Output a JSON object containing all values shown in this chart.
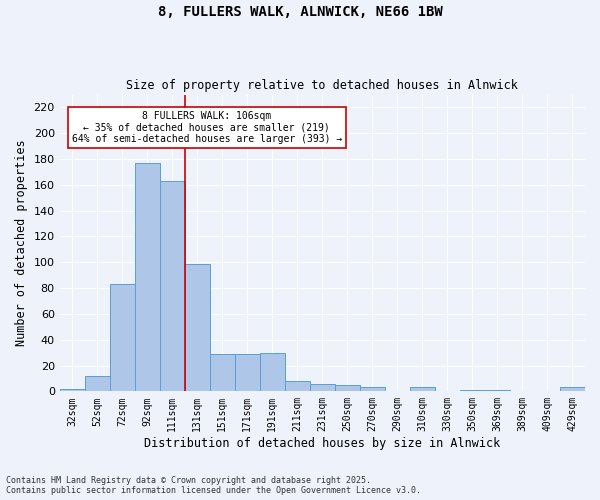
{
  "title": "8, FULLERS WALK, ALNWICK, NE66 1BW",
  "subtitle": "Size of property relative to detached houses in Alnwick",
  "xlabel": "Distribution of detached houses by size in Alnwick",
  "ylabel": "Number of detached properties",
  "categories": [
    "32sqm",
    "52sqm",
    "72sqm",
    "92sqm",
    "111sqm",
    "131sqm",
    "151sqm",
    "171sqm",
    "191sqm",
    "211sqm",
    "231sqm",
    "250sqm",
    "270sqm",
    "290sqm",
    "310sqm",
    "330sqm",
    "350sqm",
    "369sqm",
    "389sqm",
    "409sqm",
    "429sqm"
  ],
  "values": [
    2,
    12,
    83,
    177,
    163,
    99,
    29,
    29,
    30,
    8,
    6,
    5,
    3,
    0,
    3,
    0,
    1,
    1,
    0,
    0,
    3
  ],
  "bar_color": "#aec6e8",
  "bar_edge_color": "#5a9fd4",
  "bar_width": 1.0,
  "property_label": "8 FULLERS WALK: 106sqm",
  "annotation_line1": "← 35% of detached houses are smaller (219)",
  "annotation_line2": "64% of semi-detached houses are larger (393) →",
  "vline_color": "#cc0000",
  "vline_x": 4.5,
  "ylim": [
    0,
    230
  ],
  "yticks": [
    0,
    20,
    40,
    60,
    80,
    100,
    120,
    140,
    160,
    180,
    200,
    220
  ],
  "background_color": "#eef2fa",
  "grid_color": "#ffffff",
  "footer_line1": "Contains HM Land Registry data © Crown copyright and database right 2025.",
  "footer_line2": "Contains public sector information licensed under the Open Government Licence v3.0."
}
